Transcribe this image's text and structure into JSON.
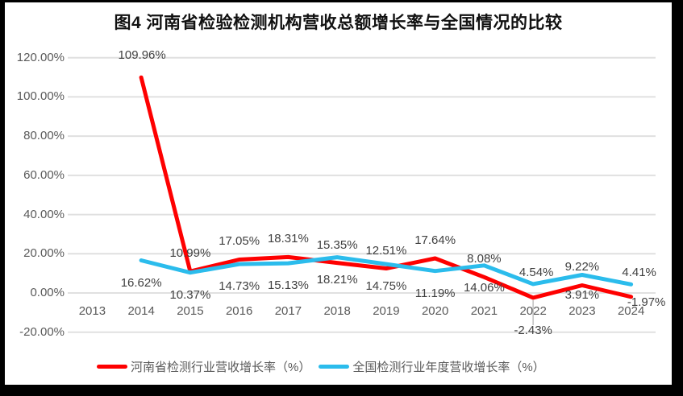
{
  "page": {
    "background_color": "#000000",
    "panel_color": "#ffffff"
  },
  "chart_data": {
    "type": "line",
    "title": "图4  河南省检验检测机构营收总额增长率与全国情况的比较",
    "categories": [
      "2013",
      "2014",
      "2015",
      "2016",
      "2017",
      "2018",
      "2019",
      "2020",
      "2021",
      "2022",
      "2023",
      "2024"
    ],
    "series": [
      {
        "id": "henan",
        "name": "河南省检测行业营收增长率（%）",
        "color": "#FE0000",
        "values": [
          null,
          109.96,
          10.99,
          17.05,
          18.31,
          15.35,
          12.51,
          17.64,
          8.08,
          -2.43,
          3.91,
          -1.97
        ]
      },
      {
        "id": "national",
        "name": "全国检测行业年度营收增长率（%）",
        "color": "#2BBCEC",
        "values": [
          null,
          16.62,
          10.37,
          14.73,
          15.13,
          18.21,
          14.75,
          11.19,
          14.06,
          4.54,
          9.22,
          4.41
        ]
      }
    ],
    "y_axis": {
      "min": -20,
      "max": 120,
      "step": 20,
      "tick_labels": [
        "120.00%",
        "100.00%",
        "80.00%",
        "60.00%",
        "40.00%",
        "20.00%",
        "0.00%",
        "-20.00%"
      ],
      "tick_values": [
        120,
        100,
        80,
        60,
        40,
        20,
        0,
        -20
      ]
    },
    "x_axis": {
      "label_rotation": 0
    },
    "grid": true,
    "legend_position": "bottom",
    "label_format": "0.00%"
  },
  "colors": {
    "gridline": "#E0E0E0",
    "axis_text": "#595959",
    "data_label_text": "#3F3F3F",
    "leader_line": "#BFBFBF"
  }
}
